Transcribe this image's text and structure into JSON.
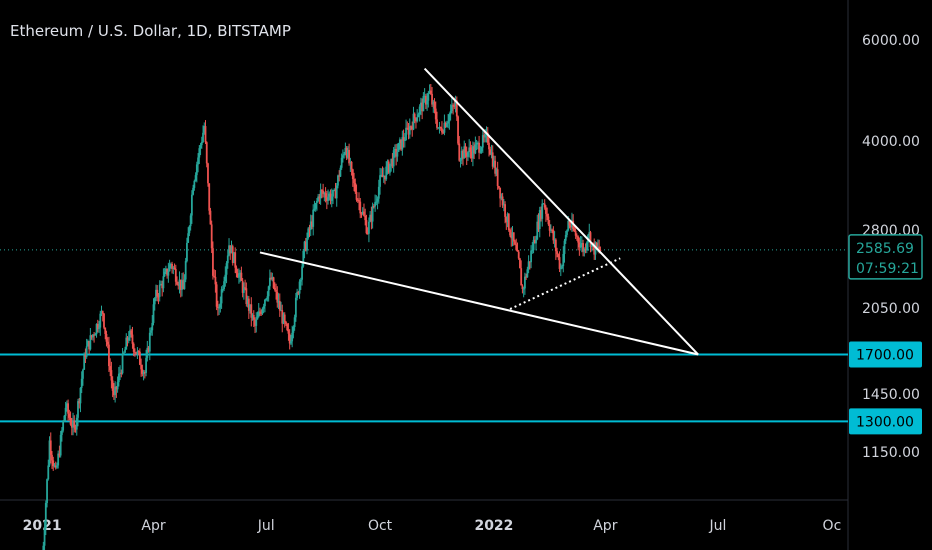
{
  "header": {
    "title": "Ethereum / U.S. Dollar, 1D, BITSTAMP"
  },
  "colors": {
    "up": "#26a69a",
    "down": "#ef5350",
    "hline": "#00bcd4",
    "badge": "#00bcd4",
    "axis_text": "#d1d4dc"
  },
  "chart_data": {
    "type": "candlestick",
    "title": "Ethereum / U.S. Dollar, 1D, BITSTAMP",
    "scale": "log",
    "ylim": [
      900,
      7000
    ],
    "x_range": [
      "2020-11-28",
      "2022-10-14"
    ],
    "y_tick_labels": [
      "6000.00",
      "4000.00",
      "2800.00",
      "2050.00",
      "1450.00",
      "1150.00"
    ],
    "x_tick_labels": [
      "2021",
      "Apr",
      "Jul",
      "Oct",
      "2022",
      "Apr",
      "Jul",
      "Oc"
    ],
    "last_price": "2585.69",
    "countdown": "07:59:21",
    "horizontal_levels": [
      {
        "price": 1700,
        "label": "1700.00"
      },
      {
        "price": 1300,
        "label": "1300.00"
      }
    ],
    "trendlines": [
      {
        "name": "upper-wedge-line",
        "style": "solid",
        "from": [
          "2021-11-06",
          5350
        ],
        "to": [
          "2022-06-15",
          1700
        ]
      },
      {
        "name": "lower-wedge-line",
        "style": "solid",
        "from": [
          "2021-06-26",
          2560
        ],
        "to": [
          "2022-06-15",
          1700
        ]
      },
      {
        "name": "support-dotted-line",
        "style": "dotted",
        "from": [
          "2022-01-14",
          2040
        ],
        "to": [
          "2022-04-13",
          2500
        ]
      }
    ],
    "price_path": [
      [
        "2021-01-01",
        740
      ],
      [
        "2021-01-07",
        1200
      ],
      [
        "2021-01-12",
        1050
      ],
      [
        "2021-01-20",
        1380
      ],
      [
        "2021-01-27",
        1250
      ],
      [
        "2021-02-05",
        1720
      ],
      [
        "2021-02-19",
        2020
      ],
      [
        "2021-02-28",
        1420
      ],
      [
        "2021-03-12",
        1850
      ],
      [
        "2021-03-25",
        1580
      ],
      [
        "2021-04-02",
        2120
      ],
      [
        "2021-04-15",
        2450
      ],
      [
        "2021-04-25",
        2200
      ],
      [
        "2021-05-03",
        3400
      ],
      [
        "2021-05-12",
        4250
      ],
      [
        "2021-05-19",
        2400
      ],
      [
        "2021-05-23",
        2000
      ],
      [
        "2021-06-01",
        2650
      ],
      [
        "2021-06-22",
        1900
      ],
      [
        "2021-07-05",
        2300
      ],
      [
        "2021-07-20",
        1780
      ],
      [
        "2021-08-01",
        2600
      ],
      [
        "2021-08-13",
        3250
      ],
      [
        "2021-08-25",
        3200
      ],
      [
        "2021-09-03",
        3950
      ],
      [
        "2021-09-09",
        3400
      ],
      [
        "2021-09-21",
        2800
      ],
      [
        "2021-10-01",
        3400
      ],
      [
        "2021-10-15",
        3850
      ],
      [
        "2021-10-29",
        4400
      ],
      [
        "2021-11-10",
        4850
      ],
      [
        "2021-11-18",
        4150
      ],
      [
        "2021-12-01",
        4650
      ],
      [
        "2021-12-04",
        3800
      ],
      [
        "2021-12-15",
        3850
      ],
      [
        "2021-12-27",
        4050
      ],
      [
        "2022-01-07",
        3200
      ],
      [
        "2022-01-21",
        2450
      ],
      [
        "2022-01-24",
        2200
      ],
      [
        "2022-02-10",
        3150
      ],
      [
        "2022-02-24",
        2400
      ],
      [
        "2022-03-02",
        2900
      ],
      [
        "2022-03-15",
        2580
      ],
      [
        "2022-03-18",
        2790
      ],
      [
        "2022-03-22",
        2600
      ],
      [
        "2022-03-28",
        2585.69
      ]
    ]
  }
}
